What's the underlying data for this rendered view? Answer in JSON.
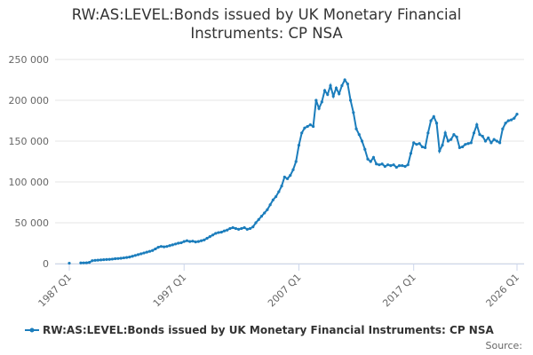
{
  "chart_data": {
    "type": "line",
    "title": "RW:AS:LEVEL:Bonds issued by UK Monetary Financial Instruments: CP NSA",
    "source": "Source:",
    "categories": [
      "1987 Q1",
      null,
      null,
      null,
      null,
      null,
      null,
      null,
      null,
      null,
      null,
      null,
      null,
      null,
      null,
      null,
      null,
      null,
      null,
      null,
      null,
      null,
      null,
      null,
      null,
      null,
      null,
      null,
      null,
      null,
      null,
      null,
      null,
      null,
      null,
      null,
      null,
      null,
      null,
      null,
      "1997 Q1",
      null,
      null,
      null,
      null,
      null,
      null,
      null,
      null,
      null,
      null,
      null,
      null,
      null,
      null,
      null,
      null,
      null,
      null,
      null,
      null,
      null,
      null,
      null,
      null,
      null,
      null,
      null,
      null,
      null,
      null,
      null,
      null,
      null,
      null,
      null,
      null,
      null,
      null,
      null,
      "2007 Q1",
      null,
      null,
      null,
      null,
      null,
      null,
      null,
      null,
      null,
      null,
      null,
      null,
      null,
      null,
      null,
      null,
      null,
      null,
      null,
      null,
      null,
      null,
      null,
      null,
      null,
      null,
      null,
      null,
      null,
      null,
      null,
      null,
      null,
      null,
      null,
      null,
      null,
      null,
      null,
      "2017 Q1",
      null,
      null,
      null,
      null,
      null,
      null,
      null,
      null,
      null,
      null,
      null,
      null,
      null,
      null,
      null,
      null,
      null,
      null,
      null,
      null,
      null,
      null,
      null,
      null,
      null,
      null,
      null,
      null,
      null,
      null,
      null,
      null,
      null,
      null,
      null,
      "2026 Q1"
    ],
    "series": [
      {
        "name": "RW:AS:LEVEL:Bonds issued by UK Monetary Financial Instruments: CP NSA",
        "color": "#1b7dbc",
        "values": [
          500,
          null,
          null,
          null,
          800,
          900,
          1000,
          1500,
          3500,
          4000,
          4200,
          4500,
          4800,
          5000,
          5200,
          5500,
          6000,
          6200,
          6500,
          7000,
          7500,
          8000,
          9000,
          10000,
          11000,
          12000,
          13000,
          14000,
          15000,
          16000,
          18000,
          20000,
          21000,
          20500,
          21000,
          22000,
          23000,
          24000,
          25000,
          25500,
          27000,
          28000,
          27000,
          27500,
          26500,
          27000,
          28000,
          29000,
          31000,
          33000,
          35000,
          37000,
          38000,
          38500,
          40000,
          41000,
          43000,
          44000,
          43000,
          42000,
          43000,
          44000,
          42000,
          43000,
          45000,
          50000,
          54000,
          58000,
          62000,
          66000,
          72000,
          78000,
          82000,
          88000,
          95000,
          106000,
          104000,
          108000,
          115000,
          125000,
          145000,
          160000,
          166000,
          168000,
          170000,
          168000,
          200000,
          190000,
          198000,
          212000,
          207000,
          218000,
          205000,
          215000,
          208000,
          218000,
          225000,
          220000,
          200000,
          185000,
          165000,
          158000,
          150000,
          140000,
          128000,
          125000,
          130000,
          122000,
          121000,
          122000,
          119000,
          121000,
          120000,
          121000,
          118000,
          120000,
          120000,
          119000,
          121000,
          135000,
          148000,
          146000,
          147000,
          143000,
          142000,
          160000,
          175000,
          180000,
          172000,
          138000,
          145000,
          160000,
          150000,
          152000,
          158000,
          155000,
          142000,
          143000,
          146000,
          147000,
          148000,
          160000,
          170000,
          158000,
          156000,
          150000,
          154000,
          148000,
          152000,
          150000,
          148000,
          165000,
          172000,
          175000,
          176000,
          178000,
          183000
        ]
      }
    ],
    "ylim": [
      0,
      250000
    ],
    "yticks": [
      0,
      {
        "value": 50000,
        "label": "50 000"
      },
      {
        "value": 100000,
        "label": "100 000"
      },
      {
        "value": 150000,
        "label": "150 000"
      },
      {
        "value": 200000,
        "label": "200 000"
      },
      {
        "value": 250000,
        "label": "250 000"
      }
    ],
    "grid": true
  }
}
